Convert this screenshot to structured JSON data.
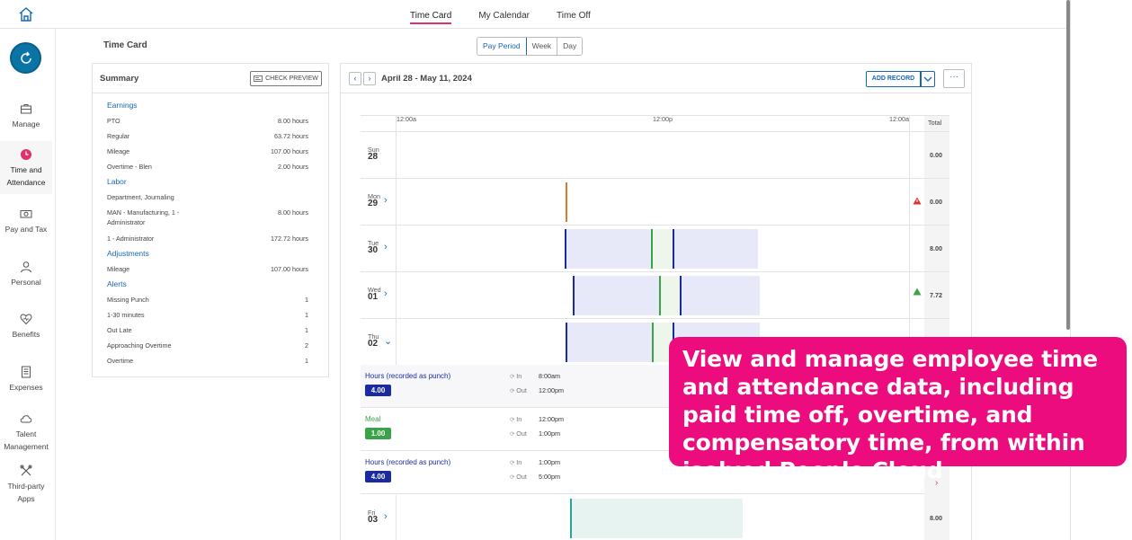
{
  "topnav": {
    "tabs": [
      "Time Card",
      "My Calendar",
      "Time Off"
    ],
    "active": 0
  },
  "sidebar": {
    "items": [
      {
        "label": "Manage",
        "icon": "briefcase-icon"
      },
      {
        "label": "Time and Attendance",
        "icon": "clock-icon"
      },
      {
        "label": "Pay and Tax",
        "icon": "money-icon"
      },
      {
        "label": "Personal",
        "icon": "person-icon"
      },
      {
        "label": "Benefits",
        "icon": "heart-icon"
      },
      {
        "label": "Expenses",
        "icon": "receipt-icon"
      },
      {
        "label": "Talent Management",
        "icon": "cloud-icon"
      },
      {
        "label": "Third-party Apps",
        "icon": "tools-icon"
      }
    ]
  },
  "page": {
    "title": "Time Card"
  },
  "view_toggle": {
    "options": [
      "Pay Period",
      "Week",
      "Day"
    ],
    "active": "Pay Period"
  },
  "summary": {
    "title": "Summary",
    "check_preview": "CHECK PREVIEW",
    "sections": {
      "earnings": {
        "title": "Earnings",
        "rows": [
          {
            "label": "PTO",
            "value": "8.00 hours"
          },
          {
            "label": "Regular",
            "value": "63.72 hours"
          },
          {
            "label": "Mileage",
            "value": "107.00 hours"
          },
          {
            "label": "Overtime - Blen",
            "value": "2.00 hours"
          }
        ]
      },
      "labor": {
        "title": "Labor",
        "rows": [
          {
            "label": "Department, Journaling",
            "value": ""
          },
          {
            "label": "MAN - Manufacturing, 1 - Administrator",
            "value": "8.00 hours"
          },
          {
            "label": "1 - Administrator",
            "value": "172.72 hours"
          }
        ]
      },
      "adjustments": {
        "title": "Adjustments",
        "rows": [
          {
            "label": "Mileage",
            "value": "107.00 hours"
          }
        ]
      },
      "alerts": {
        "title": "Alerts",
        "rows": [
          {
            "label": "Missing Punch",
            "value": "1"
          },
          {
            "label": "1-30 minutes",
            "value": "1"
          },
          {
            "label": "Out Late",
            "value": "1"
          },
          {
            "label": "Approaching Overtime",
            "value": "2"
          },
          {
            "label": "Overtime",
            "value": "1"
          }
        ]
      }
    }
  },
  "calendar": {
    "range": "April 28 - May 11, 2024",
    "add_record": "ADD RECORD",
    "more": "···",
    "axis": [
      "12:00a",
      "12:00p",
      "12:00a"
    ],
    "total_header": "Total",
    "days": [
      {
        "dow": "Sun",
        "num": "28",
        "total": "0.00",
        "chevron": ""
      },
      {
        "dow": "Mon",
        "num": "29",
        "total": "0.00",
        "chevron": "›"
      },
      {
        "dow": "Tue",
        "num": "30",
        "total": "8.00",
        "chevron": "›"
      },
      {
        "dow": "Wed",
        "num": "01",
        "total": "7.72",
        "chevron": "›"
      },
      {
        "dow": "Thu",
        "num": "02",
        "total": "",
        "chevron": "⌄"
      },
      {
        "dow": "Fri",
        "num": "03",
        "total": "8.00",
        "chevron": "›"
      }
    ],
    "punches": [
      {
        "title": "Hours (recorded as punch)",
        "hours": "4.00",
        "in_label": "In",
        "in": "8:00am",
        "out_label": "Out",
        "out": "12:00pm",
        "color": "#1a2aa0"
      },
      {
        "title": "Meal",
        "hours": "1.00",
        "in_label": "In",
        "in": "12:00pm",
        "out_label": "Out",
        "out": "1:00pm",
        "color": "#3aa34a"
      },
      {
        "title": "Hours (recorded as punch)",
        "hours": "4.00",
        "in_label": "In",
        "in": "1:00pm",
        "out_label": "Out",
        "out": "5:00pm",
        "color": "#1a2aa0"
      }
    ]
  },
  "callout": {
    "text": "View and manage employee time and attendance data, including paid time off, overtime, and compensatory time, from within isolved People Cloud"
  },
  "colors": {
    "accent": "#ec0c7e",
    "primary": "#1766b3",
    "work": "#1a2aa0",
    "meal": "#3aa34a"
  }
}
